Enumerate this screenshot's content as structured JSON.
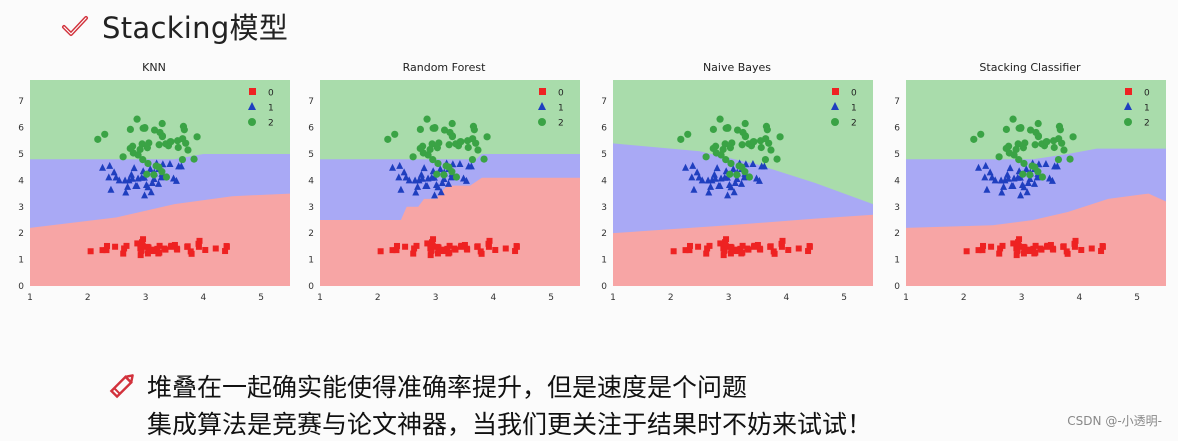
{
  "slide": {
    "title": "Stacking模型",
    "check_icon": "red-check-icon",
    "pencil_icon": "red-pencil-icon",
    "accent_color": "#d2323c",
    "bullet_line_1": "堆叠在一起确实能使得准确率提升，但是速度是个问题",
    "bullet_line_2": "集成算法是竞赛与论文神器，当我们更关注于结果时不妨来试试！"
  },
  "watermark": "CSDN @-小透明-",
  "chart_data": [
    {
      "type": "scatter",
      "title": "KNN",
      "xlim": [
        1,
        5.5
      ],
      "ylim": [
        0,
        7.8
      ],
      "xticks": [
        1,
        2,
        3,
        4,
        5
      ],
      "yticks": [
        0,
        1,
        2,
        3,
        4,
        5,
        6,
        7
      ],
      "legend": [
        "0",
        "1",
        "2"
      ],
      "legend_position": "top-right",
      "region_colors": [
        "#f7a5a5",
        "#a9a9f5",
        "#a9dcab"
      ],
      "boundary_01": [
        [
          1,
          2.2
        ],
        [
          2.5,
          2.6
        ],
        [
          3.5,
          3.1
        ],
        [
          4.5,
          3.4
        ],
        [
          5.5,
          3.5
        ]
      ],
      "boundary_12": [
        [
          1,
          4.8
        ],
        [
          3.5,
          4.8
        ],
        [
          4,
          5
        ],
        [
          5.5,
          5
        ]
      ]
    },
    {
      "type": "scatter",
      "title": "Random Forest",
      "xlim": [
        1,
        5.5
      ],
      "ylim": [
        0,
        7.8
      ],
      "xticks": [
        1,
        2,
        3,
        4,
        5
      ],
      "yticks": [
        0,
        1,
        2,
        3,
        4,
        5,
        6,
        7
      ],
      "legend": [
        "0",
        "1",
        "2"
      ],
      "legend_position": "top-right",
      "region_colors": [
        "#f7a5a5",
        "#a9a9f5",
        "#a9dcab"
      ],
      "boundary_01": [
        [
          1,
          2.5
        ],
        [
          2.4,
          2.5
        ],
        [
          2.5,
          3
        ],
        [
          2.7,
          3
        ],
        [
          2.8,
          3.3
        ],
        [
          3,
          3.3
        ],
        [
          3.2,
          3.8
        ],
        [
          3.6,
          3.8
        ],
        [
          3.8,
          4.1
        ],
        [
          5.5,
          4.1
        ]
      ],
      "boundary_12": [
        [
          1,
          4.8
        ],
        [
          3.7,
          4.8
        ],
        [
          3.8,
          5
        ],
        [
          5.5,
          5
        ]
      ]
    },
    {
      "type": "scatter",
      "title": "Naive Bayes",
      "xlim": [
        1,
        5.5
      ],
      "ylim": [
        0,
        7.8
      ],
      "xticks": [
        1,
        2,
        3,
        4,
        5
      ],
      "yticks": [
        0,
        1,
        2,
        3,
        4,
        5,
        6,
        7
      ],
      "legend": [
        "0",
        "1",
        "2"
      ],
      "legend_position": "top-right",
      "region_colors": [
        "#f7a5a5",
        "#a9a9f5",
        "#a9dcab"
      ],
      "boundary_01": [
        [
          1,
          2.0
        ],
        [
          3,
          2.3
        ],
        [
          4.5,
          2.55
        ],
        [
          5.5,
          2.7
        ]
      ],
      "boundary_12": [
        [
          1,
          5.4
        ],
        [
          2.5,
          5.1
        ],
        [
          3.5,
          4.6
        ],
        [
          4.5,
          3.9
        ],
        [
          5.5,
          3.1
        ]
      ]
    },
    {
      "type": "scatter",
      "title": "Stacking Classifier",
      "xlim": [
        1,
        5.5
      ],
      "ylim": [
        0,
        7.8
      ],
      "xticks": [
        1,
        2,
        3,
        4,
        5
      ],
      "yticks": [
        0,
        1,
        2,
        3,
        4,
        5,
        6,
        7
      ],
      "legend": [
        "0",
        "1",
        "2"
      ],
      "legend_position": "top-right",
      "region_colors": [
        "#f7a5a5",
        "#a9a9f5",
        "#a9dcab"
      ],
      "boundary_01": [
        [
          1,
          2.2
        ],
        [
          2.5,
          2.3
        ],
        [
          3.2,
          2.5
        ],
        [
          3.8,
          2.8
        ],
        [
          4.5,
          3.3
        ],
        [
          5.2,
          3.5
        ],
        [
          5.5,
          3.2
        ]
      ],
      "boundary_12": [
        [
          1,
          4.8
        ],
        [
          3.2,
          4.8
        ],
        [
          3.8,
          5
        ],
        [
          4.3,
          5.2
        ],
        [
          5.5,
          5.2
        ]
      ]
    }
  ]
}
